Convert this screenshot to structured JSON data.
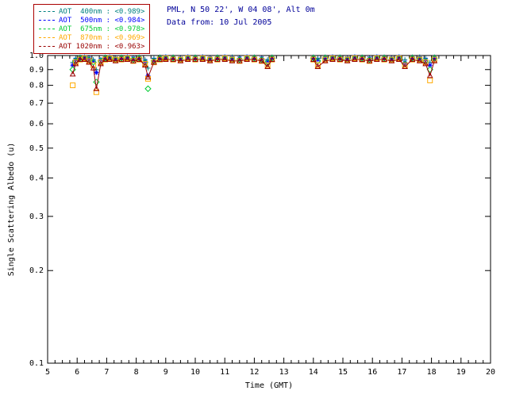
{
  "header": {
    "site_line": "PML, N 50 22', W 04 08', Alt 0m",
    "date_line": "Data from: 10 Jul 2005",
    "text_color": "#000099"
  },
  "legend": {
    "border_color": "#aa0000"
  },
  "chart_data": {
    "type": "scatter",
    "title": "",
    "xlabel": "Time (GMT)",
    "ylabel": "Single Scattering Albedo (u)",
    "x_scale": "linear",
    "y_scale": "log",
    "xlim": [
      5,
      20
    ],
    "ylim": [
      0.1,
      1.0
    ],
    "xticks": [
      5,
      6,
      7,
      8,
      9,
      10,
      11,
      12,
      13,
      14,
      15,
      16,
      17,
      18,
      19,
      20
    ],
    "yticks": [
      1.0,
      0.9,
      0.8,
      0.7,
      0.6,
      0.5,
      0.4,
      0.3,
      0.2,
      0.1
    ],
    "grid": false,
    "legend_position": "top-left",
    "axis_color": "#000000",
    "x": [
      5.85,
      5.95,
      6.1,
      6.25,
      6.4,
      6.55,
      6.65,
      6.8,
      6.95,
      7.1,
      7.3,
      7.5,
      7.7,
      7.9,
      8.1,
      8.3,
      8.4,
      8.6,
      8.8,
      9.0,
      9.25,
      9.5,
      9.75,
      10.0,
      10.25,
      10.5,
      10.75,
      11.0,
      11.25,
      11.5,
      11.75,
      12.0,
      12.25,
      12.45,
      12.6,
      14.0,
      14.15,
      14.4,
      14.65,
      14.9,
      15.15,
      15.4,
      15.65,
      15.9,
      16.15,
      16.4,
      16.65,
      16.9,
      17.1,
      17.35,
      17.6,
      17.8,
      17.95,
      18.1
    ],
    "series": [
      {
        "name": "AOT  400nm",
        "mean": "<0.989>",
        "color": "#008080",
        "marker": "plus",
        "line": false,
        "y": [
          0.95,
          0.98,
          0.99,
          0.99,
          0.98,
          0.97,
          0.9,
          0.97,
          0.99,
          0.99,
          0.98,
          0.99,
          0.99,
          0.98,
          0.99,
          0.97,
          0.91,
          0.98,
          0.99,
          0.99,
          0.99,
          0.98,
          0.99,
          0.99,
          0.99,
          0.98,
          0.99,
          0.99,
          0.99,
          0.98,
          0.99,
          0.99,
          0.98,
          0.97,
          0.99,
          0.99,
          0.98,
          0.99,
          0.99,
          0.99,
          0.98,
          0.99,
          0.99,
          0.98,
          0.99,
          0.99,
          0.98,
          0.99,
          0.97,
          0.99,
          0.99,
          0.98,
          0.95,
          0.99
        ]
      },
      {
        "name": "AOT  500nm",
        "mean": "<0.984>",
        "color": "#0000ff",
        "marker": "asterisk",
        "line": false,
        "y": [
          0.93,
          0.97,
          0.98,
          0.99,
          0.98,
          0.96,
          0.88,
          0.97,
          0.98,
          0.99,
          0.98,
          0.98,
          0.99,
          0.98,
          0.98,
          0.96,
          0.86,
          0.97,
          0.98,
          0.99,
          0.98,
          0.98,
          0.99,
          0.98,
          0.99,
          0.98,
          0.98,
          0.99,
          0.98,
          0.98,
          0.99,
          0.98,
          0.98,
          0.96,
          0.98,
          0.98,
          0.97,
          0.98,
          0.99,
          0.98,
          0.98,
          0.99,
          0.98,
          0.98,
          0.99,
          0.98,
          0.98,
          0.99,
          0.95,
          0.98,
          0.98,
          0.97,
          0.93,
          0.98
        ]
      },
      {
        "name": "AOT  675nm",
        "mean": "<0.978>",
        "color": "#00cc33",
        "marker": "diamond",
        "line": false,
        "y": [
          0.9,
          0.96,
          0.98,
          0.98,
          0.97,
          0.95,
          0.82,
          0.96,
          0.98,
          0.98,
          0.97,
          0.98,
          0.98,
          0.97,
          0.98,
          0.95,
          0.78,
          0.96,
          0.98,
          0.98,
          0.98,
          0.97,
          0.98,
          0.98,
          0.98,
          0.97,
          0.98,
          0.98,
          0.97,
          0.97,
          0.98,
          0.98,
          0.97,
          0.95,
          0.98,
          0.98,
          0.96,
          0.98,
          0.98,
          0.98,
          0.97,
          0.98,
          0.98,
          0.97,
          0.98,
          0.98,
          0.97,
          0.98,
          0.94,
          0.98,
          0.97,
          0.96,
          0.9,
          0.98
        ]
      },
      {
        "name": "AOT  870nm",
        "mean": "<0.969>",
        "color": "#ffaa00",
        "marker": "square",
        "line": false,
        "y": [
          0.8,
          0.95,
          0.97,
          0.98,
          0.96,
          0.93,
          0.76,
          0.95,
          0.97,
          0.98,
          0.97,
          0.97,
          0.98,
          0.96,
          0.97,
          0.94,
          0.84,
          0.95,
          0.97,
          0.98,
          0.97,
          0.97,
          0.98,
          0.97,
          0.98,
          0.97,
          0.97,
          0.98,
          0.97,
          0.96,
          0.98,
          0.97,
          0.96,
          0.93,
          0.97,
          0.97,
          0.93,
          0.97,
          0.98,
          0.97,
          0.97,
          0.98,
          0.97,
          0.96,
          0.98,
          0.97,
          0.97,
          0.98,
          0.93,
          0.97,
          0.97,
          0.95,
          0.83,
          0.97
        ]
      },
      {
        "name": "AOT 1020nm",
        "mean": "<0.963>",
        "color": "#990000",
        "marker": "triangle",
        "line": true,
        "y": [
          0.87,
          0.94,
          0.97,
          0.97,
          0.95,
          0.91,
          0.78,
          0.94,
          0.97,
          0.97,
          0.96,
          0.97,
          0.97,
          0.96,
          0.97,
          0.93,
          0.85,
          0.95,
          0.97,
          0.97,
          0.97,
          0.96,
          0.97,
          0.97,
          0.97,
          0.96,
          0.97,
          0.97,
          0.96,
          0.96,
          0.97,
          0.97,
          0.96,
          0.92,
          0.97,
          0.97,
          0.92,
          0.96,
          0.97,
          0.97,
          0.96,
          0.97,
          0.97,
          0.96,
          0.97,
          0.97,
          0.96,
          0.97,
          0.92,
          0.97,
          0.96,
          0.94,
          0.86,
          0.96
        ]
      }
    ]
  }
}
